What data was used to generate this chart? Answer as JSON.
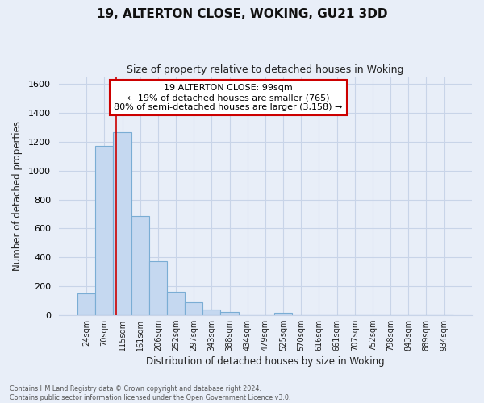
{
  "title_line1": "19, ALTERTON CLOSE, WOKING, GU21 3DD",
  "title_line2": "Size of property relative to detached houses in Woking",
  "xlabel": "Distribution of detached houses by size in Woking",
  "ylabel": "Number of detached properties",
  "categories": [
    "24sqm",
    "70sqm",
    "115sqm",
    "161sqm",
    "206sqm",
    "252sqm",
    "297sqm",
    "343sqm",
    "388sqm",
    "434sqm",
    "479sqm",
    "525sqm",
    "570sqm",
    "616sqm",
    "661sqm",
    "707sqm",
    "752sqm",
    "798sqm",
    "843sqm",
    "889sqm",
    "934sqm"
  ],
  "values": [
    148,
    1175,
    1265,
    685,
    375,
    160,
    90,
    35,
    20,
    0,
    0,
    15,
    0,
    0,
    0,
    0,
    0,
    0,
    0,
    0,
    0
  ],
  "bar_color": "#c5d8f0",
  "bar_edge_color": "#7aadd4",
  "ylim": [
    0,
    1650
  ],
  "yticks": [
    0,
    200,
    400,
    600,
    800,
    1000,
    1200,
    1400,
    1600
  ],
  "annotation_box_text_line1": "19 ALTERTON CLOSE: 99sqm",
  "annotation_box_text_line2": "← 19% of detached houses are smaller (765)",
  "annotation_box_text_line3": "80% of semi-detached houses are larger (3,158) →",
  "footer_line1": "Contains HM Land Registry data © Crown copyright and database right 2024.",
  "footer_line2": "Contains public sector information licensed under the Open Government Licence v3.0.",
  "background_color": "#e8eef8",
  "plot_bg_color": "#e8eef8",
  "grid_color": "#c8d4e8"
}
